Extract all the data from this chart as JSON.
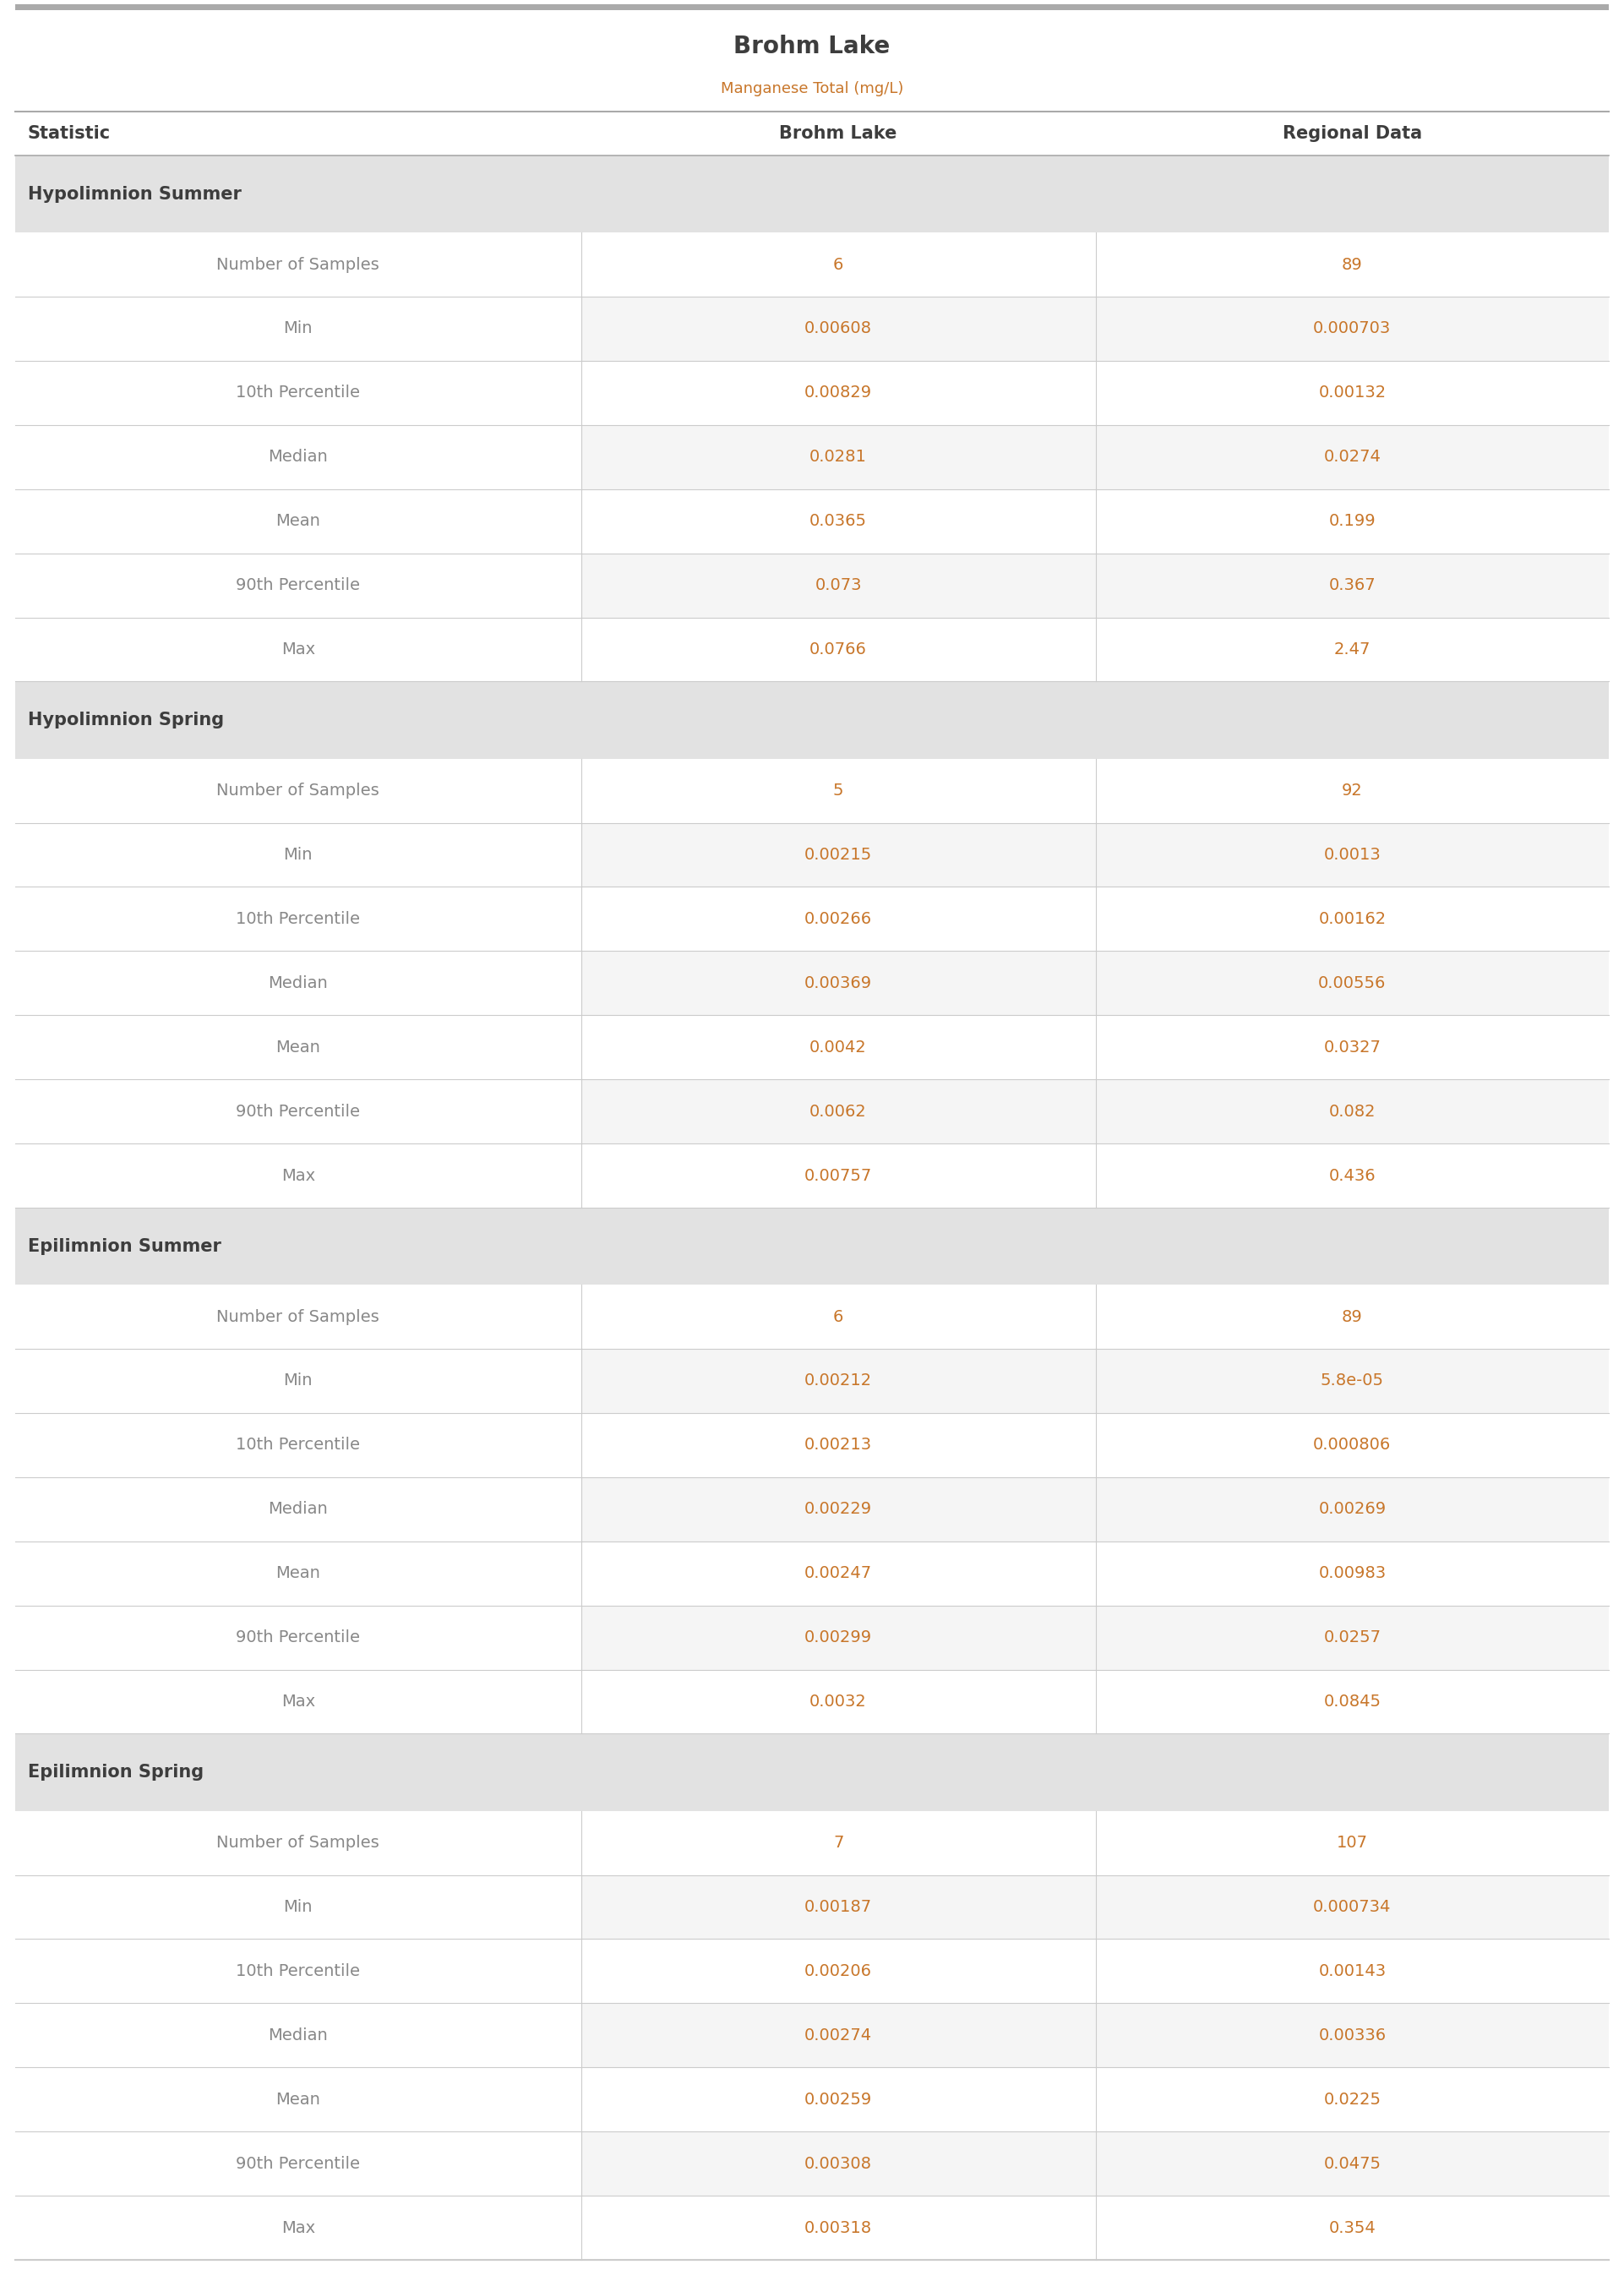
{
  "title": "Brohm Lake",
  "subtitle": "Manganese Total (mg/L)",
  "col_headers": [
    "Statistic",
    "Brohm Lake",
    "Regional Data"
  ],
  "sections": [
    {
      "name": "Hypolimnion Summer",
      "rows": [
        [
          "Number of Samples",
          "6",
          "89"
        ],
        [
          "Min",
          "0.00608",
          "0.000703"
        ],
        [
          "10th Percentile",
          "0.00829",
          "0.00132"
        ],
        [
          "Median",
          "0.0281",
          "0.0274"
        ],
        [
          "Mean",
          "0.0365",
          "0.199"
        ],
        [
          "90th Percentile",
          "0.073",
          "0.367"
        ],
        [
          "Max",
          "0.0766",
          "2.47"
        ]
      ]
    },
    {
      "name": "Hypolimnion Spring",
      "rows": [
        [
          "Number of Samples",
          "5",
          "92"
        ],
        [
          "Min",
          "0.00215",
          "0.0013"
        ],
        [
          "10th Percentile",
          "0.00266",
          "0.00162"
        ],
        [
          "Median",
          "0.00369",
          "0.00556"
        ],
        [
          "Mean",
          "0.0042",
          "0.0327"
        ],
        [
          "90th Percentile",
          "0.0062",
          "0.082"
        ],
        [
          "Max",
          "0.00757",
          "0.436"
        ]
      ]
    },
    {
      "name": "Epilimnion Summer",
      "rows": [
        [
          "Number of Samples",
          "6",
          "89"
        ],
        [
          "Min",
          "0.00212",
          "5.8e-05"
        ],
        [
          "10th Percentile",
          "0.00213",
          "0.000806"
        ],
        [
          "Median",
          "0.00229",
          "0.00269"
        ],
        [
          "Mean",
          "0.00247",
          "0.00983"
        ],
        [
          "90th Percentile",
          "0.00299",
          "0.0257"
        ],
        [
          "Max",
          "0.0032",
          "0.0845"
        ]
      ]
    },
    {
      "name": "Epilimnion Spring",
      "rows": [
        [
          "Number of Samples",
          "7",
          "107"
        ],
        [
          "Min",
          "0.00187",
          "0.000734"
        ],
        [
          "10th Percentile",
          "0.00206",
          "0.00143"
        ],
        [
          "Median",
          "0.00274",
          "0.00336"
        ],
        [
          "Mean",
          "0.00259",
          "0.0225"
        ],
        [
          "90th Percentile",
          "0.00308",
          "0.0475"
        ],
        [
          "Max",
          "0.00318",
          "0.354"
        ]
      ]
    }
  ],
  "title_color": "#3d3d3d",
  "subtitle_color": "#c8762a",
  "header_text_color": "#3d3d3d",
  "section_bg_color": "#e2e2e2",
  "section_text_color": "#3d3d3d",
  "data_text_color": "#c8762a",
  "statistic_text_color": "#888888",
  "number_text_color": "#888888",
  "divider_color": "#cccccc",
  "header_divider_color": "#aaaaaa",
  "top_bar_color": "#aaaaaa",
  "bottom_bar_color": "#cccccc",
  "title_fontsize": 20,
  "subtitle_fontsize": 13,
  "header_fontsize": 15,
  "section_fontsize": 15,
  "data_fontsize": 14
}
